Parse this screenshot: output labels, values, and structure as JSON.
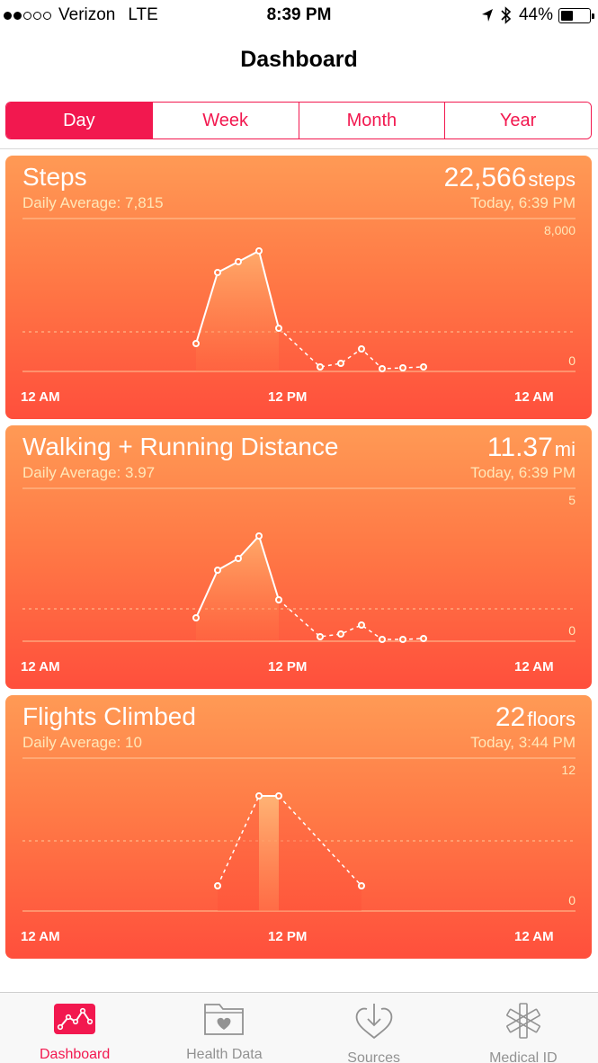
{
  "status_bar": {
    "carrier": "Verizon",
    "network": "LTE",
    "time": "8:39 PM",
    "battery": "44%",
    "battery_level": 0.44,
    "signal_bars_filled": 2,
    "signal_bars_total": 5
  },
  "nav": {
    "title": "Dashboard"
  },
  "segments": [
    {
      "label": "Day",
      "active": true
    },
    {
      "label": "Week",
      "active": false
    },
    {
      "label": "Month",
      "active": false
    },
    {
      "label": "Year",
      "active": false
    }
  ],
  "cards": [
    {
      "title": "Steps",
      "average": "Daily Average: 7,815",
      "value": "22,566",
      "unit": "steps",
      "updated": "Today, 6:39 PM",
      "y_max_label": "8,000",
      "y_min_label": "0",
      "x_labels": [
        "12 AM",
        "12 PM",
        "12 AM"
      ]
    },
    {
      "title": "Walking + Running Distance",
      "average": "Daily Average: 3.97",
      "value": "11.37",
      "unit": "mi",
      "updated": "Today, 6:39 PM",
      "y_max_label": "5",
      "y_min_label": "0",
      "x_labels": [
        "12 AM",
        "12 PM",
        "12 AM"
      ]
    },
    {
      "title": "Flights Climbed",
      "average": "Daily Average: 10",
      "value": "22",
      "unit": "floors",
      "updated": "Today, 3:44 PM",
      "y_max_label": "12",
      "y_min_label": "0",
      "x_labels": [
        "12 AM",
        "12 PM",
        "12 AM"
      ]
    }
  ],
  "tabs": [
    {
      "label": "Dashboard",
      "icon": "dashboard-chart-icon",
      "active": true
    },
    {
      "label": "Health Data",
      "icon": "health-folder-icon",
      "active": false
    },
    {
      "label": "Sources",
      "icon": "sources-download-heart-icon",
      "active": false
    },
    {
      "label": "Medical ID",
      "icon": "medical-star-icon",
      "active": false
    }
  ],
  "colors": {
    "accent": "#f2184f",
    "card_top": "#ff9a55",
    "card_bottom": "#ff4f3c",
    "tab_inactive": "#929292"
  }
}
